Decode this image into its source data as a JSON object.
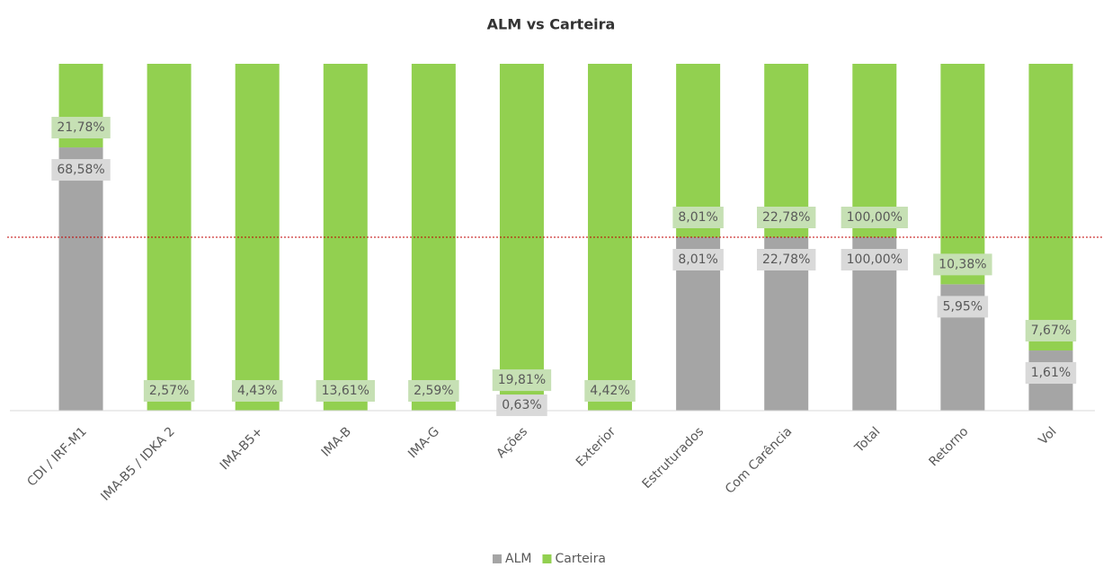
{
  "chart_data": {
    "type": "bar",
    "stacked": "percent",
    "title": "ALM vs Carteira",
    "categories": [
      "CDI / IRF-M1",
      "IMA-B5 / IDKA 2",
      "IMA-B5+",
      "IMA-B",
      "IMA-G",
      "Ações",
      "Exterior",
      "Estruturados",
      "Com Carência",
      "Total",
      "Retorno",
      "Vol"
    ],
    "series": [
      {
        "name": "ALM",
        "color": "#a5a5a5",
        "values": [
          68.58,
          null,
          null,
          null,
          null,
          0.63,
          null,
          8.01,
          22.78,
          100.0,
          5.95,
          1.61
        ],
        "value_labels": [
          "68,58%",
          null,
          null,
          null,
          null,
          "0,63%",
          null,
          "8,01%",
          "22,78%",
          "100,00%",
          "5,95%",
          "1,61%"
        ]
      },
      {
        "name": "Carteira",
        "color": "#92d050",
        "values": [
          21.78,
          2.57,
          4.43,
          13.61,
          2.59,
          19.81,
          4.42,
          8.01,
          22.78,
          100.0,
          10.38,
          7.67
        ],
        "value_labels": [
          "21,78%",
          "2,57%",
          "4,43%",
          "13,61%",
          "2,59%",
          "19,81%",
          "4,42%",
          "8,01%",
          "22,78%",
          "100,00%",
          "10,38%",
          "7,67%"
        ]
      }
    ],
    "reference_line": {
      "value": 50,
      "color": "#c00000"
    },
    "legend": "bottom"
  }
}
